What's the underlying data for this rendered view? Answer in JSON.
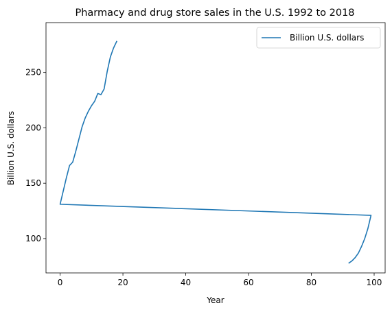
{
  "chart_data": {
    "type": "line",
    "title": "Pharmacy and drug store sales in the U.S. 1992 to 2018",
    "xlabel": "Year",
    "ylabel": "Billion U.S. dollars",
    "xlim": [
      -4.5,
      103.5
    ],
    "ylim": [
      69,
      295
    ],
    "xticks": [
      0,
      20,
      40,
      60,
      80,
      100
    ],
    "yticks": [
      100,
      150,
      200,
      250
    ],
    "grid": false,
    "legend": {
      "position": "top-right"
    },
    "line_color": "#1f77b4",
    "series": [
      {
        "name": "Billion U.S. dollars",
        "x": [
          92,
          93,
          94,
          95,
          96,
          97,
          98,
          99,
          0,
          1,
          2,
          3,
          4,
          5,
          6,
          7,
          8,
          9,
          10,
          11,
          12,
          13,
          14,
          15,
          16,
          17,
          18
        ],
        "y": [
          78,
          80,
          83,
          87,
          93,
          100,
          109,
          121,
          131,
          143,
          155,
          166,
          169,
          179,
          190,
          201,
          209,
          215,
          220,
          224,
          231,
          230,
          235,
          251,
          264,
          272,
          278
        ]
      }
    ]
  }
}
